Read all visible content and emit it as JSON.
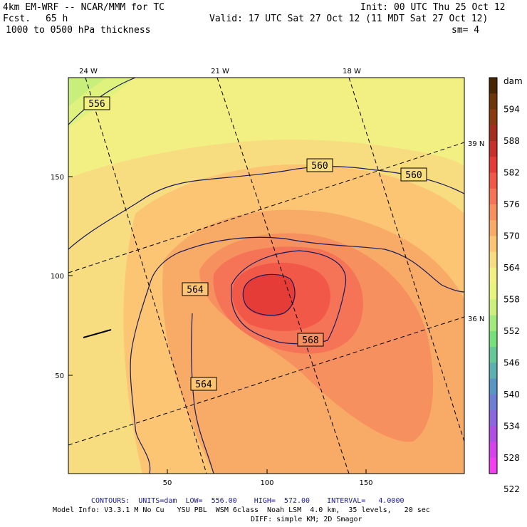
{
  "header": {
    "model": "4km EM-WRF -- NCAR/MMM for TC",
    "fcst_label": "Fcst.",
    "fcst_hours": "65 h",
    "field": "1000 to 0500 hPa thickness",
    "init": "Init: 00 UTC Thu 25 Oct 12",
    "valid": "Valid: 17 UTC Sat 27 Oct 12 (11 MDT Sat 27 Oct 12)",
    "sm": "sm= 4"
  },
  "map": {
    "lon_labels": [
      "24 W",
      "21 W",
      "18 W"
    ],
    "lat_labels": [
      "39 N",
      "36 N"
    ],
    "x_ticks": [
      "50",
      "100",
      "150"
    ],
    "y_ticks": [
      "150",
      "100",
      "50"
    ],
    "contour_labels": [
      "556",
      "560",
      "560",
      "564",
      "564",
      "568"
    ]
  },
  "colorbar": {
    "units": "dam",
    "levels": [
      "594",
      "588",
      "582",
      "576",
      "570",
      "564",
      "558",
      "552",
      "546",
      "540",
      "534",
      "528",
      "522"
    ],
    "colors": [
      "#4a2600",
      "#6e3608",
      "#8b3a10",
      "#a32e1e",
      "#c8302a",
      "#e63c38",
      "#f25848",
      "#f57458",
      "#f6905e",
      "#f8ab66",
      "#fbc574",
      "#f7dd80",
      "#f2f082",
      "#e8f47e",
      "#ccf07e",
      "#a2ea7c",
      "#78e07a",
      "#66c896",
      "#5cb0b0",
      "#5a96c4",
      "#6e7ed4",
      "#8c66dc",
      "#b050e2",
      "#d444ea",
      "#f040f0"
    ]
  },
  "footer": {
    "contours": "CONTOURS:  UNITS=dam  LOW=  556.00    HIGH=  572.00    INTERVAL=   4.0000",
    "model_info": "Model Info: V3.3.1 M No Cu   YSU PBL  WSM 6class  Noah LSM  4.0 km,  35 levels,   20 sec",
    "diff": "DIFF: simple KM; 2D Smagor"
  }
}
